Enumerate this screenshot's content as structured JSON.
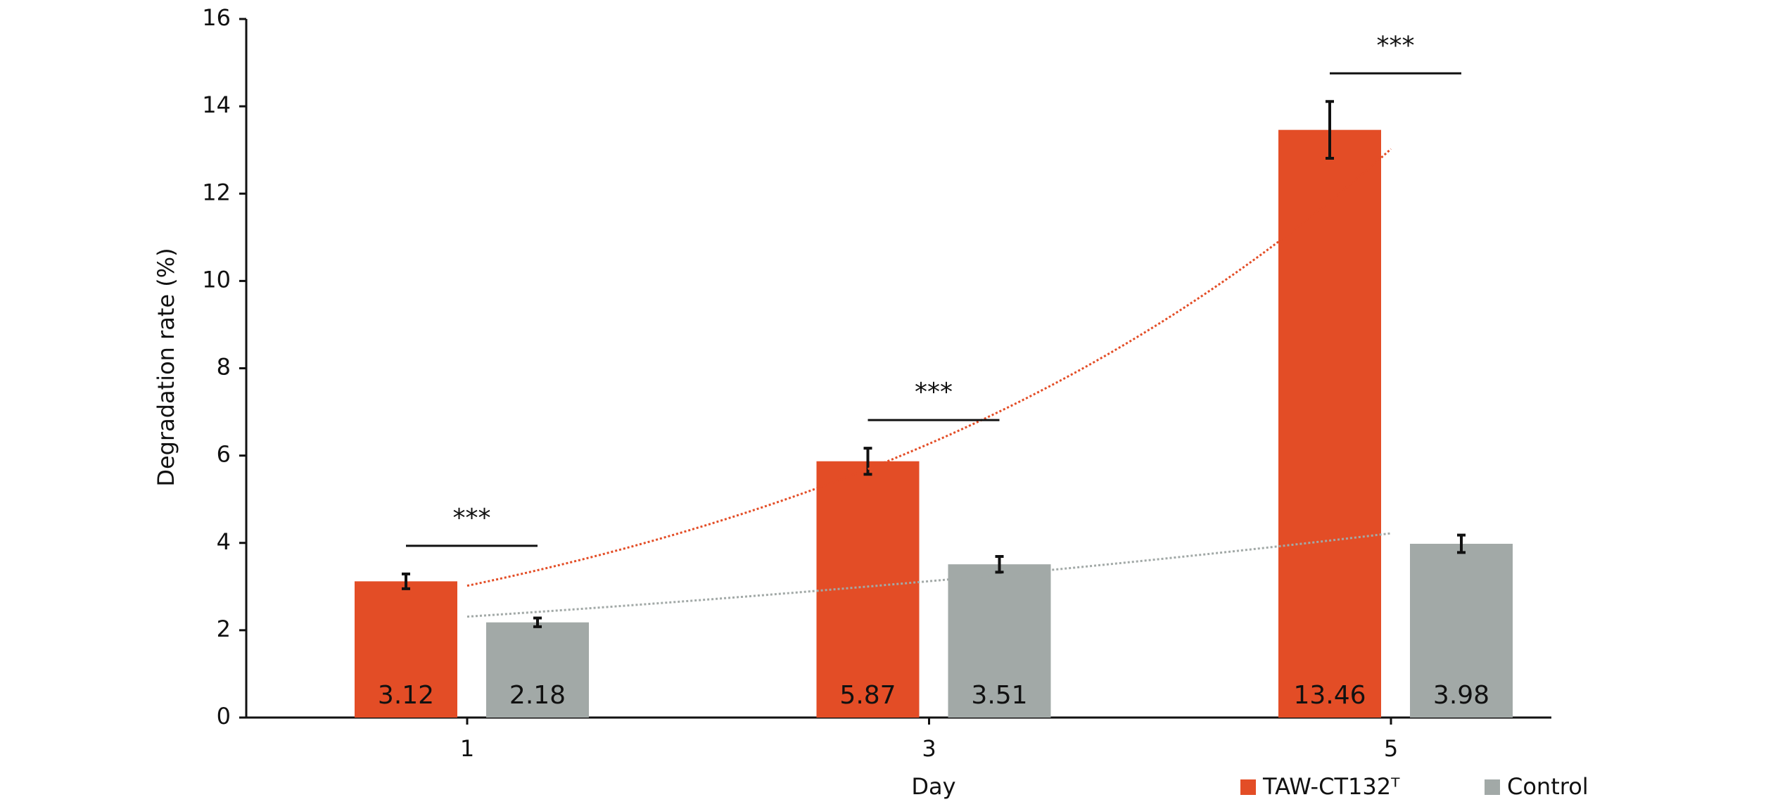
{
  "chart_data": {
    "type": "bar",
    "x_label": "Day",
    "y_label": "Degradation rate (%)",
    "categories": [
      "1",
      "3",
      "5"
    ],
    "series": [
      {
        "name": "TAW-CT132ᵀ",
        "color": "#e34d26",
        "values": [
          3.12,
          5.87,
          13.46
        ],
        "errors": [
          0.17,
          0.3,
          0.65
        ]
      },
      {
        "name": "Control",
        "color": "#a2a9a7",
        "values": [
          2.18,
          3.51,
          3.98
        ],
        "errors": [
          0.1,
          0.18,
          0.2
        ]
      }
    ],
    "annotations": [
      "***",
      "***",
      "***"
    ],
    "trendline": "exponential",
    "ylim": [
      0,
      16
    ],
    "yticks": [
      0,
      2,
      4,
      6,
      8,
      10,
      12,
      14,
      16
    ],
    "legend": "bottom-right"
  }
}
